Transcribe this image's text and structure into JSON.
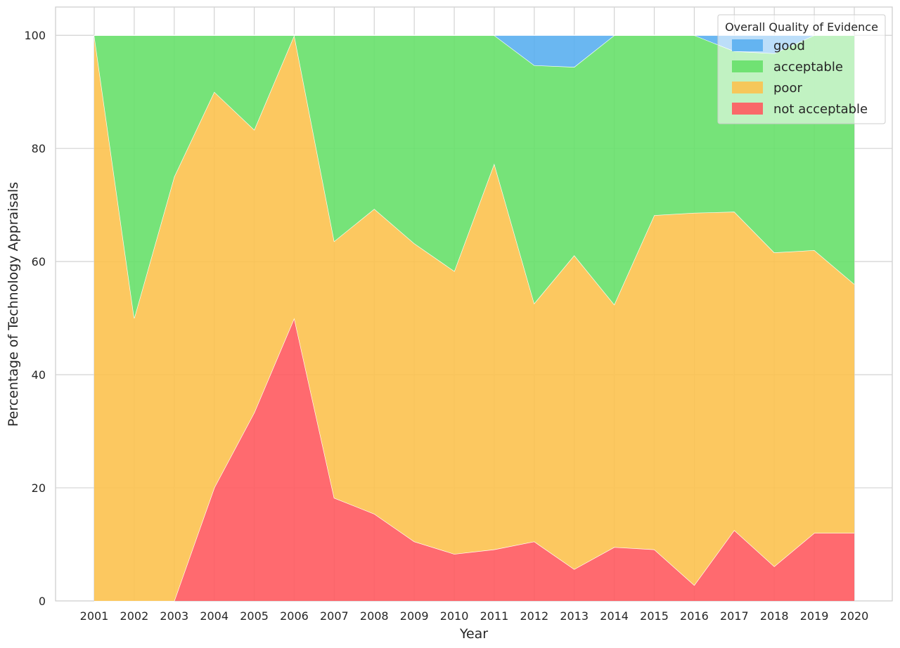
{
  "chart_data": {
    "type": "area",
    "stacked": true,
    "title": "",
    "xlabel": "Year",
    "ylabel": "Percentage of Technology Appraisals",
    "ylim": [
      0,
      105
    ],
    "yticks": [
      "0",
      "20",
      "40",
      "60",
      "80",
      "100"
    ],
    "grid": true,
    "x": [
      "2001",
      "2002",
      "2003",
      "2004",
      "2005",
      "2006",
      "2007",
      "2008",
      "2009",
      "2010",
      "2011",
      "2012",
      "2013",
      "2014",
      "2015",
      "2016",
      "2017",
      "2018",
      "2019",
      "2020"
    ],
    "series": [
      {
        "name": "not acceptable",
        "color": "#ff5a5f",
        "values": [
          0,
          0,
          0,
          20,
          33.3,
          50,
          18.2,
          15.4,
          10.5,
          8.3,
          9.1,
          10.5,
          5.6,
          9.5,
          9.1,
          2.8,
          12.5,
          6.1,
          12,
          12
        ]
      },
      {
        "name": "poor",
        "color": "#fcc24f",
        "values": [
          100,
          50,
          75,
          70,
          50,
          50,
          45.4,
          53.9,
          52.7,
          50,
          68.2,
          42.1,
          55.5,
          42.9,
          59.1,
          65.8,
          56.3,
          55.5,
          50,
          44
        ]
      },
      {
        "name": "acceptable",
        "color": "#67e06a",
        "values": [
          0,
          50,
          25,
          10,
          16.7,
          0,
          36.4,
          30.7,
          36.8,
          41.7,
          22.7,
          42.1,
          33.3,
          47.6,
          31.8,
          31.4,
          28.4,
          35.2,
          38,
          44
        ]
      },
      {
        "name": "good",
        "color": "#5aaff0",
        "values": [
          0,
          0,
          0,
          0,
          0,
          0,
          0,
          0,
          0,
          0,
          0,
          5.3,
          5.6,
          0,
          0,
          0,
          2.8,
          3.2,
          0,
          0
        ]
      }
    ],
    "legend": {
      "title": "Overall Quality of Evidence",
      "placement": "top-right",
      "entries": [
        "good",
        "acceptable",
        "poor",
        "not acceptable"
      ]
    }
  }
}
